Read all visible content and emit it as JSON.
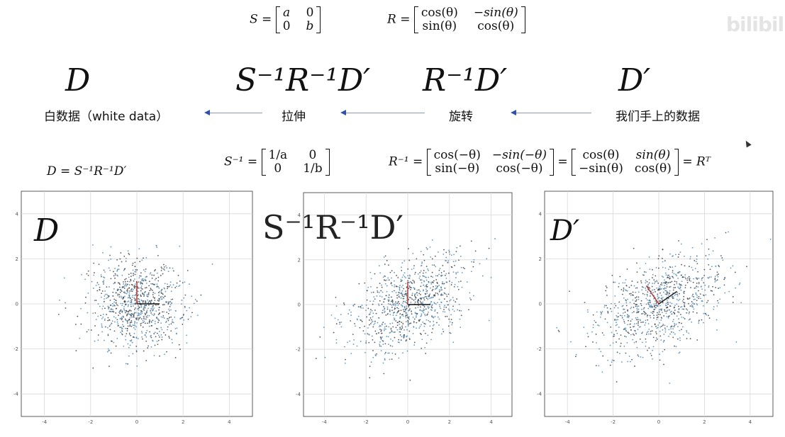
{
  "watermark": "bilibili",
  "formulas": {
    "S": {
      "lhs": "S =",
      "m": [
        "a",
        "0",
        "0",
        "b"
      ]
    },
    "R": {
      "lhs": "R =",
      "m": [
        "cos(θ)",
        "−sin(θ)",
        "sin(θ)",
        "cos(θ)"
      ]
    },
    "D_eq": "D = S⁻¹R⁻¹D′",
    "S_inv": {
      "lhs": "S⁻¹ =",
      "m": [
        "1/a",
        "0",
        "0",
        "1/b"
      ]
    },
    "R_inv": {
      "lhs": "R⁻¹ =",
      "m1": [
        "cos(−θ)",
        "−sin(−θ)",
        "sin(−θ)",
        "cos(−θ)"
      ],
      "eq": "=",
      "m2": [
        "cos(θ)",
        "sin(θ)",
        "−sin(θ)",
        "cos(θ)"
      ],
      "rhs": "= Rᵀ"
    }
  },
  "pipeline": {
    "stages": [
      {
        "expr": "D",
        "label": "白数据（white data）"
      },
      {
        "expr": "S⁻¹R⁻¹D′",
        "label": "拉伸"
      },
      {
        "expr": "R⁻¹D′",
        "label": "旋转"
      },
      {
        "expr": "D′",
        "label": "我们手上的数据"
      }
    ]
  },
  "plots": [
    {
      "label": "D",
      "x_ticks": [
        "-4",
        "-2",
        "0",
        "2",
        "4"
      ],
      "y_ticks": [
        "4",
        "2",
        "0",
        "-2",
        "-4"
      ]
    },
    {
      "label": "S⁻¹R⁻¹D′",
      "x_ticks": [
        "-4",
        "-2",
        "0",
        "2",
        "4"
      ],
      "y_ticks": [
        "4",
        "2",
        "0",
        "-2",
        "-4"
      ]
    },
    {
      "label": "D′",
      "x_ticks": [
        "-4",
        "-2",
        "0",
        "2",
        "4"
      ],
      "y_ticks": [
        "4",
        "2",
        "0",
        "-2",
        "-4"
      ]
    }
  ],
  "colors": {
    "point_dark": "#3b3b3b",
    "point_blue": "#4a86b4",
    "axis_red": "#b02a2a",
    "axis_black": "#111111",
    "arrow": "#2f4fa8"
  }
}
